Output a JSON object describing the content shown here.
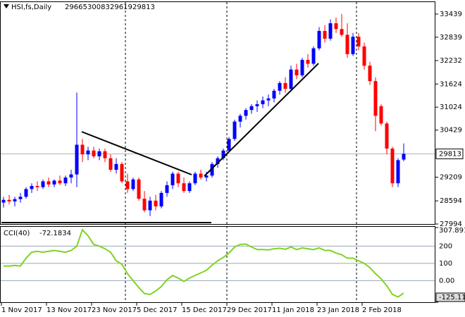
{
  "chart_data": [
    {
      "type": "candlestick",
      "title": "HSI,fs,Daily",
      "up_color": "#0000ff",
      "down_color": "#ff0000",
      "ylim": [
        27994,
        33730
      ],
      "yticks": [
        27994,
        28594,
        29209,
        30429,
        31024,
        31624,
        32232,
        32839,
        33439
      ],
      "values": [
        [
          28550,
          28700,
          28420,
          28620
        ],
        [
          28620,
          28750,
          28500,
          28580
        ],
        [
          28580,
          28700,
          28450,
          28640
        ],
        [
          28640,
          28800,
          28550,
          28700
        ],
        [
          28700,
          28950,
          28650,
          28900
        ],
        [
          28900,
          29050,
          28800,
          28980
        ],
        [
          28980,
          29100,
          28850,
          28950
        ],
        [
          28950,
          29150,
          28900,
          29100
        ],
        [
          29100,
          29200,
          28950,
          29020
        ],
        [
          29020,
          29150,
          28950,
          29120
        ],
        [
          29120,
          29250,
          29000,
          29050
        ],
        [
          29050,
          29250,
          28980,
          29200
        ],
        [
          29200,
          29400,
          29050,
          29280
        ],
        [
          29280,
          31400,
          28950,
          30050
        ],
        [
          30050,
          30200,
          29600,
          29800
        ],
        [
          29800,
          30000,
          29650,
          29900
        ],
        [
          29900,
          30000,
          29700,
          29750
        ],
        [
          29750,
          29950,
          29650,
          29880
        ],
        [
          29880,
          29950,
          29600,
          29700
        ],
        [
          29700,
          29800,
          29350,
          29400
        ],
        [
          29400,
          29700,
          29300,
          29550
        ],
        [
          29550,
          29600,
          29050,
          29100
        ],
        [
          29100,
          29300,
          28800,
          28900
        ],
        [
          28900,
          29200,
          28850,
          29150
        ],
        [
          29150,
          29200,
          28600,
          28650
        ],
        [
          28650,
          28850,
          28300,
          28350
        ],
        [
          28350,
          28700,
          28200,
          28600
        ],
        [
          28600,
          28750,
          28350,
          28450
        ],
        [
          28450,
          28850,
          28400,
          28800
        ],
        [
          28800,
          29100,
          28700,
          29000
        ],
        [
          29000,
          29350,
          28900,
          29300
        ],
        [
          29300,
          29350,
          28950,
          29050
        ],
        [
          29050,
          29200,
          28800,
          28850
        ],
        [
          28850,
          29100,
          28800,
          29050
        ],
        [
          29050,
          29350,
          29000,
          29300
        ],
        [
          29300,
          29400,
          29150,
          29200
        ],
        [
          29200,
          29350,
          29100,
          29250
        ],
        [
          29250,
          29600,
          29200,
          29550
        ],
        [
          29550,
          29750,
          29450,
          29700
        ],
        [
          29700,
          29950,
          29650,
          29900
        ],
        [
          29900,
          30250,
          29850,
          30200
        ],
        [
          30200,
          30700,
          30150,
          30650
        ],
        [
          30650,
          30850,
          30500,
          30800
        ],
        [
          30800,
          31000,
          30700,
          30950
        ],
        [
          30950,
          31100,
          30850,
          31050
        ],
        [
          31050,
          31200,
          30900,
          31100
        ],
        [
          31100,
          31300,
          31000,
          31200
        ],
        [
          31200,
          31350,
          31050,
          31250
        ],
        [
          31250,
          31500,
          31150,
          31450
        ],
        [
          31450,
          31700,
          31350,
          31650
        ],
        [
          31650,
          31800,
          31400,
          31500
        ],
        [
          31500,
          32100,
          31450,
          32000
        ],
        [
          32000,
          32150,
          31750,
          31850
        ],
        [
          31850,
          32300,
          31800,
          32250
        ],
        [
          32250,
          32400,
          32050,
          32150
        ],
        [
          32150,
          32600,
          32100,
          32550
        ],
        [
          32550,
          33100,
          32500,
          33000
        ],
        [
          33000,
          33150,
          32700,
          32800
        ],
        [
          32800,
          33300,
          32750,
          33200
        ],
        [
          33200,
          33350,
          32950,
          33050
        ],
        [
          33050,
          33439,
          32850,
          32900
        ],
        [
          32900,
          33200,
          32300,
          32400
        ],
        [
          32400,
          32950,
          32350,
          32850
        ],
        [
          32850,
          32950,
          32500,
          32600
        ],
        [
          32600,
          32700,
          32000,
          32100
        ],
        [
          32100,
          32200,
          31600,
          31700
        ],
        [
          31700,
          31800,
          30400,
          30800
        ],
        [
          31050,
          31100,
          30550,
          30600
        ],
        [
          30600,
          30650,
          29800,
          29950
        ],
        [
          29950,
          30000,
          28950,
          29050
        ],
        [
          29050,
          29700,
          28950,
          29650
        ],
        [
          29665,
          30083,
          29619,
          29813
        ]
      ]
    },
    {
      "type": "line",
      "title": "CCI(40)",
      "color": "#7fd321",
      "ylim": [
        -125.113,
        307.8919
      ],
      "yticks": [
        -125.113,
        {
          "value": 0,
          "label": "0.00"
        },
        100,
        200,
        307.8919
      ],
      "categories": [
        "1 Nov 2017",
        null,
        null,
        null,
        null,
        null,
        null,
        null,
        "13 Nov 2017",
        null,
        null,
        null,
        null,
        null,
        null,
        null,
        "23 Nov 2017",
        null,
        null,
        null,
        null,
        null,
        null,
        null,
        "5 Dec 2017",
        null,
        null,
        null,
        null,
        null,
        null,
        null,
        "15 Dec 2017",
        null,
        null,
        null,
        null,
        null,
        null,
        null,
        "29 Dec 2017",
        null,
        null,
        null,
        null,
        null,
        null,
        null,
        "11 Jan 2018",
        null,
        null,
        null,
        null,
        null,
        null,
        null,
        "23 Jan 2018",
        null,
        null,
        null,
        null,
        null,
        null,
        null,
        "2 Feb 2018",
        null,
        null,
        null,
        null,
        null,
        null,
        null
      ],
      "values": [
        85,
        85,
        88,
        85,
        130,
        165,
        170,
        165,
        170,
        175,
        170,
        165,
        175,
        200,
        295,
        260,
        210,
        200,
        185,
        165,
        115,
        95,
        40,
        0,
        -40,
        -75,
        -80,
        -60,
        -35,
        5,
        30,
        15,
        -5,
        15,
        30,
        45,
        60,
        90,
        115,
        135,
        160,
        195,
        210,
        212,
        195,
        180,
        180,
        178,
        185,
        188,
        182,
        195,
        180,
        190,
        185,
        180,
        190,
        175,
        175,
        160,
        150,
        130,
        130,
        115,
        100,
        75,
        40,
        10,
        -30,
        -80,
        -95,
        -72.1834
      ]
    }
  ]
}
